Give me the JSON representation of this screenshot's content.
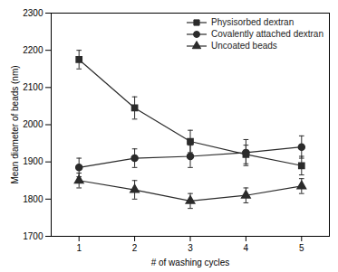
{
  "chart_data": {
    "type": "line",
    "xlabel": "# of washing cycles",
    "ylabel": "Mean diameter of beads (nm)",
    "x": [
      1,
      2,
      3,
      4,
      5
    ],
    "series": [
      {
        "name": "Physisorbed dextran",
        "color": "#2b2b2b",
        "marker": "square",
        "values": [
          2175,
          2045,
          1955,
          1920,
          1890
        ],
        "yerr": [
          25,
          30,
          30,
          25,
          25
        ]
      },
      {
        "name": "Covalently attached dextran",
        "color": "#2b2b2b",
        "marker": "circle",
        "values": [
          1885,
          1910,
          1915,
          1925,
          1940
        ],
        "yerr": [
          25,
          25,
          30,
          35,
          30
        ]
      },
      {
        "name": "Uncoated beads",
        "color": "#2b2b2b",
        "marker": "triangle",
        "values": [
          1850,
          1825,
          1795,
          1810,
          1835
        ],
        "yerr": [
          20,
          25,
          20,
          20,
          20
        ]
      }
    ],
    "xlim": [
      0.5,
      5.5
    ],
    "xticks": [
      1,
      2,
      3,
      4,
      5
    ],
    "ylim": [
      1700,
      2300
    ],
    "yticks": [
      1700,
      1800,
      1900,
      2000,
      2100,
      2200,
      2300
    ],
    "grid": false,
    "legend": "upper right"
  }
}
